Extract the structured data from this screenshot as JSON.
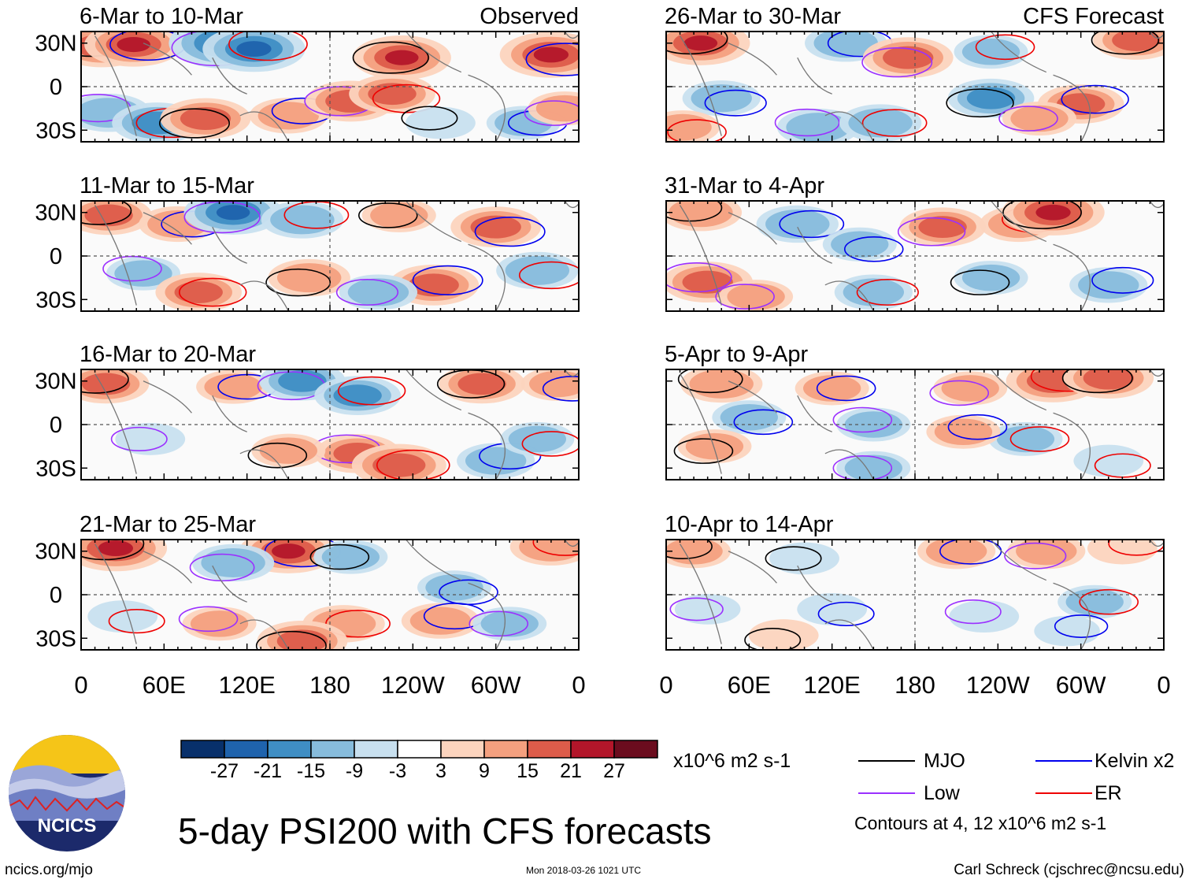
{
  "chart_data": {
    "type": "heatmap",
    "title": "5-day PSI200 with CFS forecasts",
    "variable": "PSI200",
    "units": "x10^6 m2 s-1",
    "colorbar": {
      "ticks": [
        "-27",
        "-21",
        "-15",
        "-9",
        "-3",
        "3",
        "9",
        "15",
        "21",
        "27"
      ],
      "colors": [
        "#08306b",
        "#1f63ad",
        "#3f8ec4",
        "#87bcdc",
        "#c8e0ef",
        "#ffffff",
        "#fcd4be",
        "#f4a07f",
        "#dd5c4a",
        "#b3162a",
        "#6b0c1e"
      ]
    },
    "xticks": [
      "0",
      "60E",
      "120E",
      "180",
      "120W",
      "60W",
      "0"
    ],
    "yticks": [
      "30N",
      "0",
      "30S"
    ],
    "panels": [
      {
        "period": "6-Mar to 10-Mar",
        "label": "Observed",
        "anomalies": [
          [
            15,
            28,
            20
          ],
          [
            38,
            29,
            22
          ],
          [
            105,
            30,
            -30
          ],
          [
            125,
            26,
            -24
          ],
          [
            232,
            20,
            22
          ],
          [
            340,
            22,
            24
          ],
          [
            20,
            -18,
            -15
          ],
          [
            55,
            -25,
            -18
          ],
          [
            90,
            -22,
            18
          ],
          [
            150,
            -20,
            12
          ],
          [
            195,
            -10,
            18
          ],
          [
            225,
            -5,
            16
          ],
          [
            260,
            -25,
            -8
          ],
          [
            320,
            -25,
            -10
          ],
          [
            350,
            -15,
            10
          ]
        ]
      },
      {
        "period": "26-Mar to 30-Mar",
        "label": "CFS Forecast",
        "anomalies": [
          [
            25,
            30,
            22
          ],
          [
            130,
            30,
            -14
          ],
          [
            175,
            20,
            18
          ],
          [
            235,
            24,
            -10
          ],
          [
            340,
            32,
            16
          ],
          [
            40,
            -8,
            -12
          ],
          [
            110,
            -28,
            -14
          ],
          [
            155,
            -25,
            -14
          ],
          [
            235,
            -8,
            -16
          ],
          [
            300,
            -12,
            16
          ],
          [
            270,
            -22,
            10
          ],
          [
            12,
            -28,
            10
          ]
        ]
      },
      {
        "period": "11-Mar to 15-Mar",
        "label": "",
        "anomalies": [
          [
            20,
            28,
            16
          ],
          [
            70,
            22,
            12
          ],
          [
            110,
            30,
            -22
          ],
          [
            160,
            25,
            -14
          ],
          [
            230,
            28,
            10
          ],
          [
            300,
            20,
            18
          ],
          [
            45,
            -12,
            -10
          ],
          [
            85,
            -25,
            16
          ],
          [
            165,
            -15,
            14
          ],
          [
            255,
            -20,
            18
          ],
          [
            215,
            -25,
            -12
          ],
          [
            330,
            -10,
            -14
          ]
        ]
      },
      {
        "period": "31-Mar to 4-Apr",
        "label": "",
        "anomalies": [
          [
            25,
            30,
            14
          ],
          [
            95,
            22,
            -14
          ],
          [
            200,
            20,
            16
          ],
          [
            255,
            22,
            12
          ],
          [
            280,
            30,
            24
          ],
          [
            140,
            8,
            -10
          ],
          [
            30,
            -18,
            18
          ],
          [
            150,
            -25,
            -12
          ],
          [
            235,
            -15,
            -10
          ],
          [
            320,
            -20,
            -12
          ],
          [
            65,
            -28,
            10
          ]
        ]
      },
      {
        "period": "16-Mar to 20-Mar",
        "label": "",
        "anomalies": [
          [
            18,
            28,
            16
          ],
          [
            110,
            26,
            10
          ],
          [
            160,
            30,
            -16
          ],
          [
            200,
            20,
            -16
          ],
          [
            290,
            28,
            16
          ],
          [
            345,
            28,
            10
          ],
          [
            200,
            -20,
            16
          ],
          [
            230,
            -28,
            20
          ],
          [
            150,
            -18,
            10
          ],
          [
            300,
            -25,
            -12
          ],
          [
            50,
            -10,
            -8
          ],
          [
            330,
            -10,
            -10
          ]
        ]
      },
      {
        "period": "5-Apr to 9-Apr",
        "label": "",
        "anomalies": [
          [
            40,
            28,
            14
          ],
          [
            120,
            25,
            10
          ],
          [
            220,
            25,
            10
          ],
          [
            280,
            30,
            20
          ],
          [
            320,
            32,
            18
          ],
          [
            60,
            5,
            -10
          ],
          [
            150,
            0,
            -10
          ],
          [
            260,
            -10,
            -10
          ],
          [
            35,
            -15,
            10
          ],
          [
            215,
            -5,
            10
          ],
          [
            150,
            -30,
            -10
          ],
          [
            320,
            -25,
            -8
          ]
        ]
      },
      {
        "period": "21-Mar to 25-Mar",
        "label": "",
        "anomalies": [
          [
            25,
            32,
            24
          ],
          [
            150,
            30,
            22
          ],
          [
            110,
            22,
            -14
          ],
          [
            340,
            33,
            14
          ],
          [
            195,
            26,
            -10
          ],
          [
            270,
            5,
            -10
          ],
          [
            100,
            -20,
            10
          ],
          [
            190,
            -20,
            14
          ],
          [
            160,
            -32,
            18
          ],
          [
            260,
            -18,
            12
          ],
          [
            310,
            -20,
            -10
          ],
          [
            30,
            -15,
            -8
          ]
        ]
      },
      {
        "period": "10-Apr to 14-Apr",
        "label": "",
        "anomalies": [
          [
            20,
            30,
            10
          ],
          [
            210,
            30,
            12
          ],
          [
            275,
            30,
            12
          ],
          [
            330,
            32,
            8
          ],
          [
            100,
            25,
            -8
          ],
          [
            120,
            -10,
            -8
          ],
          [
            230,
            -15,
            -8
          ],
          [
            310,
            -5,
            -10
          ],
          [
            85,
            -28,
            8
          ],
          [
            290,
            -25,
            -6
          ],
          [
            30,
            -10,
            -6
          ]
        ]
      }
    ],
    "legend": [
      {
        "name": "MJO",
        "color": "#000000"
      },
      {
        "name": "Kelvin x2",
        "color": "#0000ee"
      },
      {
        "name": "Low",
        "color": "#9b30ff"
      },
      {
        "name": "ER",
        "color": "#ee0000"
      }
    ],
    "contour_note": "Contours at 4, 12 x10^6 m2 s-1"
  },
  "logo_text": "NCICS",
  "footer": {
    "url": "ncics.org/mjo",
    "timestamp": "Mon 2018-03-26 1021 UTC",
    "author": "Carl Schreck (cjschrec@ncsu.edu)"
  }
}
